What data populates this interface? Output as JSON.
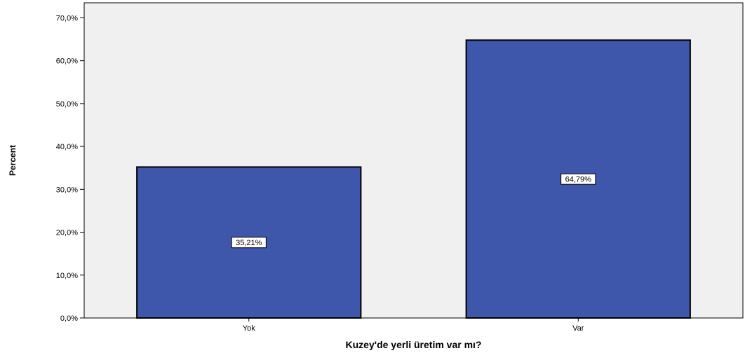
{
  "chart_data": {
    "type": "bar",
    "title": "",
    "xlabel": "Kuzey'de yerli üretim var mı?",
    "ylabel": "Percent",
    "categories": [
      "Yok",
      "Var"
    ],
    "values": [
      35.21,
      64.79
    ],
    "data_labels": [
      "35,21%",
      "64,79%"
    ],
    "ylim": [
      0,
      73.5
    ],
    "yticks": [
      0,
      10,
      20,
      30,
      40,
      50,
      60,
      70
    ],
    "ytick_labels": [
      "0,0%",
      "10,0%",
      "20,0%",
      "30,0%",
      "40,0%",
      "50,0%",
      "60,0%",
      "70,0%"
    ],
    "grid": false,
    "legend": "none",
    "colors": {
      "bar_fill": "#3f57ab",
      "bar_stroke": "#000000",
      "plot_background": "#f0f0f0",
      "axis": "#000000",
      "label_box_fill": "#ffffff"
    }
  }
}
